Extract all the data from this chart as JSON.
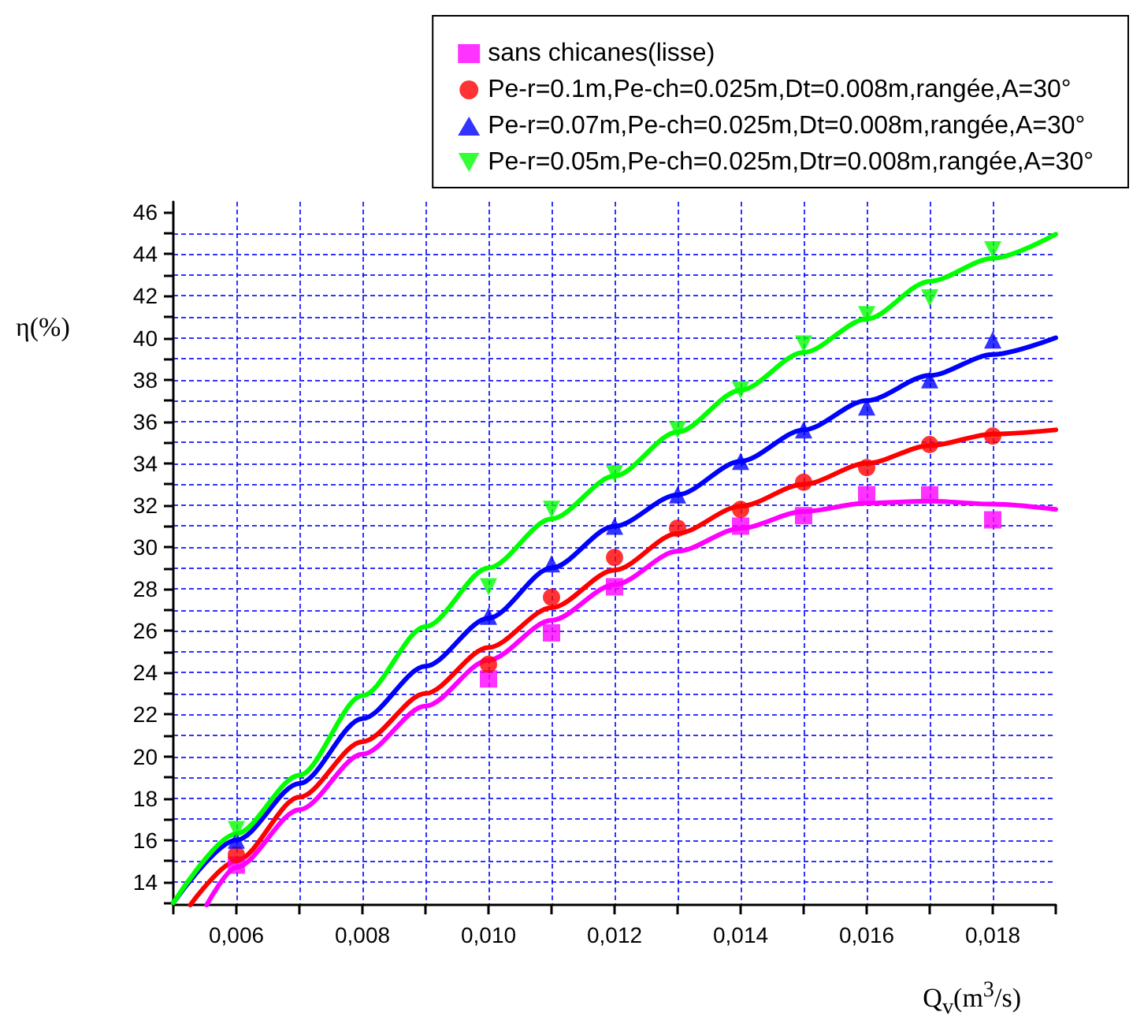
{
  "chart_data": {
    "type": "scatter",
    "xlabel": "Q$_{v}$(m$^{3}$/s)",
    "ylabel": "η(%)",
    "xlim": [
      0.005,
      0.019
    ],
    "ylim": [
      12.9,
      46.5
    ],
    "xticks": [
      {
        "value": 0.005,
        "label": null
      },
      {
        "value": 0.006,
        "label": "0,006"
      },
      {
        "value": 0.007,
        "label": null
      },
      {
        "value": 0.008,
        "label": "0,008"
      },
      {
        "value": 0.009,
        "label": null
      },
      {
        "value": 0.01,
        "label": "0,010"
      },
      {
        "value": 0.011,
        "label": null
      },
      {
        "value": 0.012,
        "label": "0,012"
      },
      {
        "value": 0.013,
        "label": null
      },
      {
        "value": 0.014,
        "label": "0,014"
      },
      {
        "value": 0.015,
        "label": null
      },
      {
        "value": 0.016,
        "label": "0,016"
      },
      {
        "value": 0.017,
        "label": null
      },
      {
        "value": 0.018,
        "label": "0,018"
      },
      {
        "value": 0.019,
        "label": null
      }
    ],
    "yticks": [
      {
        "value": 13,
        "label": null
      },
      14,
      {
        "value": 15,
        "label": null
      },
      16,
      {
        "value": 17,
        "label": null
      },
      18,
      {
        "value": 19,
        "label": null
      },
      20,
      {
        "value": 21,
        "label": null
      },
      22,
      {
        "value": 23,
        "label": null
      },
      24,
      {
        "value": 25,
        "label": null
      },
      26,
      {
        "value": 27,
        "label": null
      },
      28,
      {
        "value": 29,
        "label": null
      },
      30,
      {
        "value": 31,
        "label": null
      },
      32,
      {
        "value": 33,
        "label": null
      },
      34,
      {
        "value": 35,
        "label": null
      },
      36,
      {
        "value": 37,
        "label": null
      },
      38,
      {
        "value": 39,
        "label": null
      },
      40,
      {
        "value": 41,
        "label": null
      },
      42,
      {
        "value": 43,
        "label": null
      },
      44,
      {
        "value": 45,
        "label": null
      },
      46
    ],
    "grid": true,
    "legend": "top right",
    "series": [
      {
        "name": "sans chicanes(lisse)",
        "color": "#ff00ff",
        "marker": "square",
        "x": [
          0.006,
          0.01,
          0.011,
          0.012,
          0.014,
          0.015,
          0.016,
          0.017,
          0.018
        ],
        "values": [
          14.8,
          23.7,
          25.9,
          28.1,
          31.0,
          31.5,
          32.5,
          32.5,
          31.3
        ]
      },
      {
        "name": "Pe-r=0.1m,Pe-ch=0.025m,Dt=0.008m,rangée,A=30°",
        "color": "#ff0000",
        "marker": "circle",
        "x": [
          0.006,
          0.01,
          0.011,
          0.012,
          0.013,
          0.014,
          0.015,
          0.016,
          0.017,
          0.018
        ],
        "values": [
          15.3,
          24.4,
          27.6,
          29.5,
          30.9,
          31.8,
          33.1,
          33.8,
          34.9,
          35.3
        ]
      },
      {
        "name": "Pe-r=0.07m,Pe-ch=0.025m,Dt=0.008m,rangée,A=30°",
        "color": "#0000ff",
        "marker": "triangle",
        "x": [
          0.006,
          0.01,
          0.011,
          0.012,
          0.013,
          0.014,
          0.015,
          0.016,
          0.017,
          0.018
        ],
        "values": [
          16.0,
          26.7,
          29.2,
          31.0,
          32.5,
          34.1,
          35.6,
          36.7,
          38.0,
          39.9
        ]
      },
      {
        "name": "Pe-r=0.05m,Pe-ch=0.025m,Dtr=0.008m,rangée,A=30°",
        "color": "#00ff00",
        "marker": "triangle-down",
        "x": [
          0.006,
          0.01,
          0.011,
          0.012,
          0.013,
          0.014,
          0.015,
          0.016,
          0.017,
          0.018
        ],
        "values": [
          16.5,
          28.1,
          31.8,
          33.5,
          35.6,
          37.5,
          39.7,
          41.1,
          41.9,
          44.2
        ]
      },
      {
        "type": "line",
        "color": "#ff00ff",
        "marker": "none",
        "x": [
          0.00553,
          0.006,
          0.007,
          0.008,
          0.009,
          0.01,
          0.011,
          0.012,
          0.013,
          0.014,
          0.015,
          0.016,
          0.017,
          0.018,
          0.019
        ],
        "values": [
          12.9,
          14.7,
          17.45,
          20.1,
          22.4,
          24.6,
          26.5,
          28.2,
          29.8,
          30.9,
          31.7,
          32.1,
          32.2,
          32.05,
          31.8
        ]
      },
      {
        "type": "line",
        "color": "#ff0000",
        "marker": "none",
        "x": [
          0.00527,
          0.006,
          0.007,
          0.008,
          0.009,
          0.01,
          0.011,
          0.012,
          0.013,
          0.014,
          0.015,
          0.016,
          0.017,
          0.018,
          0.019
        ],
        "values": [
          12.9,
          15.0,
          18.05,
          20.7,
          23.0,
          25.2,
          27.1,
          28.9,
          30.65,
          31.95,
          33.0,
          34.0,
          34.85,
          35.4,
          35.6
        ]
      },
      {
        "type": "line",
        "color": "#0000ff",
        "marker": "none",
        "x": [
          0.005,
          0.006,
          0.007,
          0.008,
          0.009,
          0.01,
          0.011,
          0.012,
          0.013,
          0.014,
          0.015,
          0.016,
          0.017,
          0.018,
          0.019
        ],
        "values": [
          13.0,
          16.0,
          18.7,
          21.8,
          24.3,
          26.6,
          29.0,
          31.0,
          32.5,
          34.1,
          35.6,
          37.0,
          38.2,
          39.2,
          40.0
        ]
      },
      {
        "type": "line",
        "color": "#00ff00",
        "marker": "none",
        "x": [
          0.005,
          0.006,
          0.007,
          0.008,
          0.009,
          0.01,
          0.011,
          0.012,
          0.013,
          0.014,
          0.015,
          0.016,
          0.017,
          0.018,
          0.019
        ],
        "values": [
          13.0,
          16.3,
          19.1,
          22.9,
          26.2,
          29.0,
          31.35,
          33.4,
          35.5,
          37.5,
          39.3,
          40.9,
          42.7,
          43.8,
          44.95
        ]
      }
    ]
  }
}
